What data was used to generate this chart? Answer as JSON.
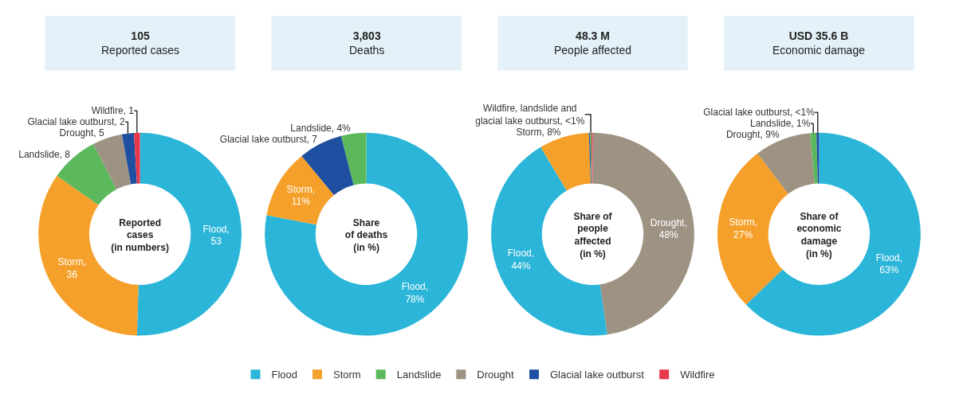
{
  "chart_data": [
    {
      "type": "donut",
      "title": "105",
      "subtitle": "Reported cases",
      "annotations": [
        "Reported\ncases\n(in numbers)"
      ],
      "legend": "bottom",
      "categories": [
        "Flood",
        "Storm",
        "Landslide",
        "Drought",
        "Glacial lake outburst",
        "Wildfire"
      ],
      "values": [
        53,
        36,
        8,
        5,
        2,
        1
      ],
      "colors": [
        "#2bb5d8",
        "#f5a02a",
        "#5cb85c",
        "#9e9283",
        "#1f4fa0",
        "#e8394b"
      ],
      "value_labels": [
        "Flood, 53",
        "Storm, 36",
        "Landslide, 8",
        "Drought, 5",
        "Glacial lake outburst, 2",
        "Wildfire, 1"
      ]
    },
    {
      "type": "donut",
      "title": "3,803",
      "subtitle": "Deaths",
      "annotations": [
        "Share\nof deaths\n(in %)"
      ],
      "categories": [
        null,
        null,
        null,
        null
      ],
      "values": [
        78,
        11,
        7,
        4
      ],
      "colors": [
        "#2bb5d8",
        "#f5a02a",
        "#1f4fa0",
        "#5cb85c"
      ],
      "value_labels": [
        "Flood, 78%",
        "Storm, 11%",
        "Glacial lake outburst, 7",
        "Landslide, 4%"
      ]
    },
    {
      "type": "donut",
      "title": "48.3 M",
      "subtitle": "People affected",
      "annotations": [
        "Share of\npeople\naffected\n(in %)"
      ],
      "categories": [
        null,
        null,
        null,
        null,
        null,
        null
      ],
      "values": [
        48,
        44,
        8,
        0.2,
        0.2,
        0.2
      ],
      "colors": [
        "#9e9283",
        "#2bb5d8",
        "#f5a02a",
        "#1f4fa0",
        "#5cb85c",
        "#e8394b"
      ],
      "value_labels": [
        "Drought, 48%",
        "Flood, 44%",
        "Storm, 8%",
        null,
        "Wildfire, landslide and glacial lake outburst, <1%",
        null
      ]
    },
    {
      "type": "donut",
      "title": "USD 35.6 B",
      "subtitle": "Economic damage",
      "annotations": [
        "Share of\neconomic\ndamage\n(in %)"
      ],
      "categories": [
        null,
        null,
        null,
        null,
        null
      ],
      "values": [
        63,
        27,
        9,
        1,
        0.4
      ],
      "colors": [
        "#2bb5d8",
        "#f5a02a",
        "#9e9283",
        "#5cb85c",
        "#1f4fa0"
      ],
      "value_labels": [
        "Flood, 63%",
        "Storm, 27%",
        "Drought, 9%",
        "Landslide, 1%",
        "Glacial lake outburst, <1%"
      ]
    }
  ]
}
